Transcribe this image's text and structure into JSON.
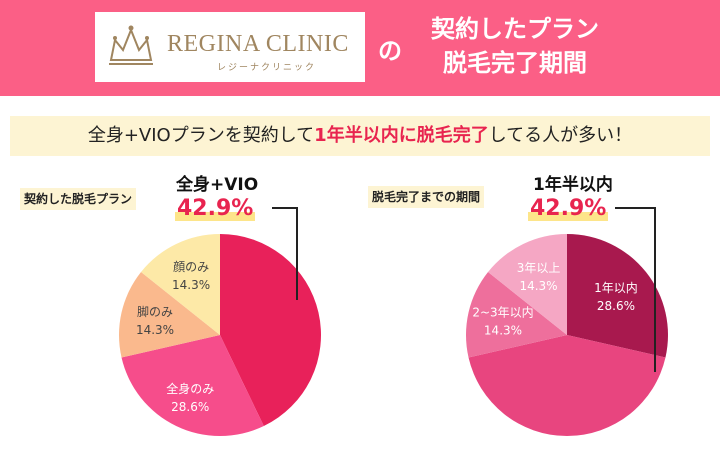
{
  "header": {
    "logo_text": "REGINA CLINIC",
    "logo_kana": "レジーナクリニック",
    "connector": "の",
    "title_line1": "契約したプラン",
    "title_line2": "脱毛完了期間"
  },
  "banner": {
    "before": "全身+VIOプランを契約して",
    "highlight": "1年半以内に脱毛完了",
    "after": "してる人が多い！"
  },
  "chart_data": [
    {
      "type": "pie",
      "title": "契約した脱毛プラン",
      "callout": {
        "label": "全身+VIO",
        "percent": "42.9%"
      },
      "slices": [
        {
          "label": "全身+VIO",
          "value": 42.9,
          "display": "",
          "color": "#e8215a"
        },
        {
          "label": "全身のみ",
          "value": 28.6,
          "display": "28.6%",
          "color": "#f64d8b"
        },
        {
          "label": "脚のみ",
          "value": 14.3,
          "display": "14.3%",
          "color": "#fab98d"
        },
        {
          "label": "顔のみ",
          "value": 14.3,
          "display": "14.3%",
          "color": "#fde9a7"
        }
      ]
    },
    {
      "type": "pie",
      "title": "脱毛完了までの期間",
      "callout": {
        "label": "1年半以内",
        "percent": "42.9%"
      },
      "slices": [
        {
          "label": "1年以内",
          "value": 28.6,
          "display": "28.6%",
          "color": "#a8194e"
        },
        {
          "label": "1年半以内",
          "value": 42.9,
          "display": "",
          "color": "#e8457f"
        },
        {
          "label": "2~3年以内",
          "value": 14.3,
          "display": "14.3%",
          "color": "#ee6f9c"
        },
        {
          "label": "3年以上",
          "value": 14.3,
          "display": "14.3%",
          "color": "#f5a7c4"
        }
      ]
    }
  ]
}
